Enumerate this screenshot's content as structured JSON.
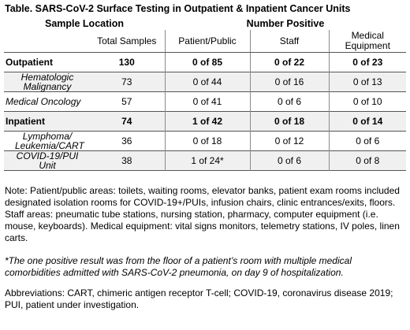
{
  "title": "Table. SARS-CoV-2 Surface Testing in Outpatient & Inpatient Cancer Units",
  "table": {
    "group_headers": {
      "sample_location": "Sample Location",
      "number_positive": "Number Positive"
    },
    "columns": {
      "total": "Total Samples",
      "patient": "Patient/Public",
      "staff": "Staff",
      "equipment": "Medical Equipment"
    },
    "rows": [
      {
        "label": "Outpatient",
        "total": "130",
        "patient": "0 of 85",
        "staff": "0 of 22",
        "equipment": "0 of 23"
      },
      {
        "label": "Hematologic Malignancy",
        "total": "73",
        "patient": "0 of 44",
        "staff": "0 of 16",
        "equipment": "0 of 13"
      },
      {
        "label": "Medical Oncology",
        "total": "57",
        "patient": "0 of 41",
        "staff": "0 of 6",
        "equipment": "0 of 10"
      },
      {
        "label": "Inpatient",
        "total": "74",
        "patient": "1 of 42",
        "staff": "0 of 18",
        "equipment": "0 of 14"
      },
      {
        "label": "Lymphoma/ Leukemia/CART",
        "total": "36",
        "patient": "0 of 18",
        "staff": "0 of 12",
        "equipment": "0 of 6"
      },
      {
        "label": "COVID-19/PUI Unit",
        "total": "38",
        "patient": "1 of 24*",
        "staff": "0 of 6",
        "equipment": "0 of 8"
      }
    ]
  },
  "notes": {
    "note": "Note: Patient/public areas: toilets, waiting rooms, elevator banks, patient exam rooms included designated isolation rooms for COVID-19+/PUIs, infusion chairs, clinic entrances/exits, floors. Staff areas: pneumatic tube stations, nursing station, pharmacy, computer equipment (i.e. mouse, keyboards). Medical equipment: vital signs monitors, telemetry stations, IV poles, linen carts.",
    "footnote": "*The one positive result was from the floor of a patient’s room with multiple medical comorbidities admitted with SARS-CoV-2 pneumonia, on day 9 of hospitalization.",
    "abbreviations": "Abbreviations: CART, chimeric antigen receptor T-cell; COVID-19, coronavirus disease 2019; PUI, patient under investigation."
  }
}
